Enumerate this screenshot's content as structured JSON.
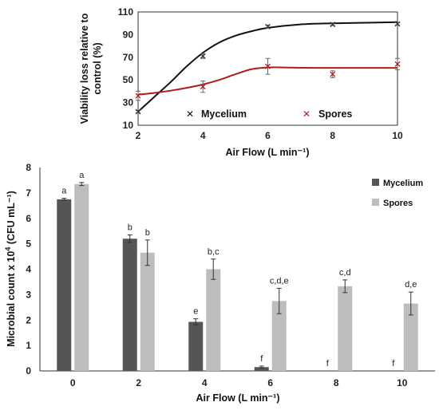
{
  "colors": {
    "mycelium_line": "#111111",
    "spores_line": "#b01c1c",
    "mycelium_bar": "#555555",
    "spores_bar": "#bdbdbd",
    "axis": "#333333"
  },
  "chart_data": [
    {
      "type": "scatter",
      "xlabel": "Air Flow (L min⁻¹)",
      "ylabel_line1": "Viability loss relative to",
      "ylabel_line2": "control (%)",
      "xlim": [
        2,
        10
      ],
      "ylim": [
        10,
        110
      ],
      "xticks": [
        "2",
        "4",
        "6",
        "8",
        "10"
      ],
      "yticks": [
        "10",
        "30",
        "50",
        "70",
        "90",
        "110"
      ],
      "legend_position": "bottom",
      "series": [
        {
          "name": "Mycelium",
          "marker": "x",
          "x": [
            2,
            4,
            6,
            8,
            10
          ],
          "y": [
            22,
            71,
            97,
            99,
            99.5
          ],
          "err": [
            1,
            2,
            1.5,
            1,
            1
          ],
          "fit": [
            [
              2,
              22
            ],
            [
              2.5,
              35
            ],
            [
              3,
              48
            ],
            [
              3.5,
              62
            ],
            [
              4,
              74
            ],
            [
              4.5,
              83
            ],
            [
              5,
              89
            ],
            [
              5.5,
              93
            ],
            [
              6,
              96
            ],
            [
              7,
              99
            ],
            [
              8,
              100
            ],
            [
              9,
              100.5
            ],
            [
              10,
              101
            ]
          ]
        },
        {
          "name": "Spores",
          "marker": "x",
          "x": [
            2,
            4,
            6,
            8,
            10
          ],
          "y": [
            36,
            44,
            62,
            55,
            64
          ],
          "err": [
            4,
            5,
            7,
            3,
            5
          ],
          "fit": [
            [
              2,
              37
            ],
            [
              2.5,
              38.5
            ],
            [
              3,
              40.5
            ],
            [
              3.5,
              43
            ],
            [
              4,
              46
            ],
            [
              4.5,
              50
            ],
            [
              5,
              55
            ],
            [
              5.5,
              59.5
            ],
            [
              6,
              61
            ],
            [
              6.5,
              61
            ],
            [
              7,
              60.7
            ],
            [
              8,
              60.6
            ],
            [
              9,
              60.6
            ],
            [
              10,
              60.6
            ]
          ]
        }
      ]
    },
    {
      "type": "bar",
      "xlabel": "Air Flow (L min⁻¹)",
      "ylabel_main": "Microbial count x 10",
      "ylabel_exp": "4",
      "ylabel_unit": " (CFU mL⁻¹)",
      "categories": [
        "0",
        "2",
        "4",
        "6",
        "8",
        "10"
      ],
      "ylim": [
        0,
        8
      ],
      "yticks": [
        "0",
        "1",
        "2",
        "3",
        "4",
        "5",
        "6",
        "7",
        "8"
      ],
      "legend_position": "top-right",
      "series": [
        {
          "name": "Mycelium",
          "values": [
            6.75,
            5.2,
            1.93,
            0.15,
            0,
            0
          ],
          "err": [
            0.04,
            0.15,
            0.12,
            0.04,
            0,
            0
          ],
          "letters": [
            "a",
            "b",
            "e",
            "f",
            "f",
            "f"
          ]
        },
        {
          "name": "Spores",
          "values": [
            7.35,
            4.65,
            4.0,
            2.75,
            3.33,
            2.65
          ],
          "err": [
            0.06,
            0.5,
            0.4,
            0.5,
            0.25,
            0.45
          ],
          "letters": [
            "a",
            "b",
            "b,c",
            "c,d,e",
            "c,d",
            "d,e"
          ]
        }
      ]
    }
  ]
}
